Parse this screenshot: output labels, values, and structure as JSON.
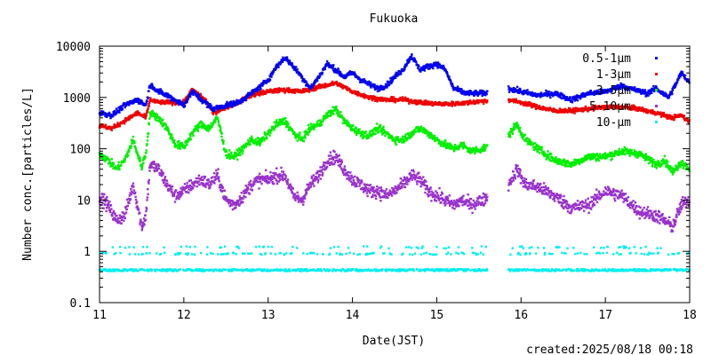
{
  "chart_data": {
    "type": "scatter",
    "title": "Fukuoka",
    "xlabel": "Date(JST)",
    "ylabel": "Number conc.[particles/L]",
    "footer": "created:2025/08/18 00:18",
    "x_axis": {
      "min": 11,
      "max": 18,
      "ticks": [
        "11",
        "12",
        "13",
        "14",
        "15",
        "16",
        "17",
        "18"
      ]
    },
    "y_axis": {
      "scale": "log",
      "min": 0.1,
      "max": 10000,
      "ticks": [
        {
          "v": 0.1,
          "label": "0.1"
        },
        {
          "v": 1,
          "label": "1"
        },
        {
          "v": 10,
          "label": "10"
        },
        {
          "v": 100,
          "label": "100"
        },
        {
          "v": 1000,
          "label": "1000"
        },
        {
          "v": 10000,
          "label": "10000"
        }
      ]
    },
    "grid": false,
    "legend_position": "top-right",
    "gaps": [
      [
        15.6,
        15.85
      ]
    ],
    "series": [
      {
        "name": "0.5-1μm",
        "color": "#0000ee",
        "jitter": 0.05,
        "points": [
          [
            11.0,
            500
          ],
          [
            11.15,
            450
          ],
          [
            11.3,
            700
          ],
          [
            11.45,
            900
          ],
          [
            11.55,
            700
          ],
          [
            11.6,
            1800
          ],
          [
            11.7,
            1300
          ],
          [
            11.85,
            1000
          ],
          [
            12.0,
            700
          ],
          [
            12.1,
            1300
          ],
          [
            12.25,
            800
          ],
          [
            12.35,
            600
          ],
          [
            12.5,
            700
          ],
          [
            12.65,
            800
          ],
          [
            12.8,
            1200
          ],
          [
            12.9,
            1600
          ],
          [
            13.0,
            2200
          ],
          [
            13.1,
            4000
          ],
          [
            13.2,
            6000
          ],
          [
            13.3,
            4000
          ],
          [
            13.4,
            2500
          ],
          [
            13.5,
            1500
          ],
          [
            13.6,
            2500
          ],
          [
            13.7,
            4500
          ],
          [
            13.8,
            3500
          ],
          [
            13.9,
            2500
          ],
          [
            14.0,
            3000
          ],
          [
            14.1,
            2200
          ],
          [
            14.2,
            1800
          ],
          [
            14.3,
            1500
          ],
          [
            14.4,
            1700
          ],
          [
            14.5,
            2500
          ],
          [
            14.6,
            3500
          ],
          [
            14.7,
            6500
          ],
          [
            14.8,
            3500
          ],
          [
            14.9,
            4000
          ],
          [
            15.0,
            4500
          ],
          [
            15.1,
            3500
          ],
          [
            15.2,
            1500
          ],
          [
            15.35,
            1200
          ],
          [
            15.55,
            1200
          ],
          [
            15.85,
            1500
          ],
          [
            16.0,
            1300
          ],
          [
            16.2,
            1100
          ],
          [
            16.4,
            1200
          ],
          [
            16.6,
            900
          ],
          [
            16.8,
            1200
          ],
          [
            17.0,
            1300
          ],
          [
            17.2,
            1700
          ],
          [
            17.35,
            1400
          ],
          [
            17.5,
            1200
          ],
          [
            17.6,
            1500
          ],
          [
            17.75,
            1000
          ],
          [
            17.85,
            2000
          ],
          [
            17.9,
            3000
          ],
          [
            18.0,
            2000
          ]
        ]
      },
      {
        "name": "1-3μm",
        "color": "#ee0000",
        "jitter": 0.04,
        "points": [
          [
            11.0,
            280
          ],
          [
            11.15,
            250
          ],
          [
            11.3,
            350
          ],
          [
            11.45,
            500
          ],
          [
            11.55,
            400
          ],
          [
            11.6,
            900
          ],
          [
            11.7,
            800
          ],
          [
            11.85,
            800
          ],
          [
            12.0,
            800
          ],
          [
            12.1,
            1400
          ],
          [
            12.25,
            900
          ],
          [
            12.35,
            500
          ],
          [
            12.5,
            650
          ],
          [
            12.65,
            800
          ],
          [
            12.8,
            1100
          ],
          [
            12.9,
            1200
          ],
          [
            13.0,
            1300
          ],
          [
            13.2,
            1400
          ],
          [
            13.4,
            1300
          ],
          [
            13.6,
            1600
          ],
          [
            13.8,
            1900
          ],
          [
            13.9,
            1600
          ],
          [
            14.0,
            1300
          ],
          [
            14.2,
            1000
          ],
          [
            14.4,
            900
          ],
          [
            14.6,
            900
          ],
          [
            14.8,
            800
          ],
          [
            15.0,
            750
          ],
          [
            15.2,
            750
          ],
          [
            15.4,
            800
          ],
          [
            15.55,
            850
          ],
          [
            15.85,
            900
          ],
          [
            16.0,
            800
          ],
          [
            16.2,
            650
          ],
          [
            16.4,
            550
          ],
          [
            16.6,
            550
          ],
          [
            16.8,
            600
          ],
          [
            17.0,
            650
          ],
          [
            17.2,
            650
          ],
          [
            17.4,
            600
          ],
          [
            17.6,
            500
          ],
          [
            17.8,
            400
          ],
          [
            17.9,
            450
          ],
          [
            18.0,
            330
          ]
        ]
      },
      {
        "name": "3-5μm",
        "color": "#00ee00",
        "jitter": 0.07,
        "points": [
          [
            11.0,
            80
          ],
          [
            11.1,
            60
          ],
          [
            11.2,
            40
          ],
          [
            11.3,
            60
          ],
          [
            11.4,
            150
          ],
          [
            11.45,
            80
          ],
          [
            11.5,
            45
          ],
          [
            11.55,
            80
          ],
          [
            11.6,
            500
          ],
          [
            11.7,
            400
          ],
          [
            11.8,
            250
          ],
          [
            11.9,
            120
          ],
          [
            12.0,
            110
          ],
          [
            12.1,
            200
          ],
          [
            12.2,
            300
          ],
          [
            12.3,
            250
          ],
          [
            12.4,
            400
          ],
          [
            12.5,
            80
          ],
          [
            12.6,
            70
          ],
          [
            12.7,
            100
          ],
          [
            12.8,
            150
          ],
          [
            12.9,
            130
          ],
          [
            13.0,
            200
          ],
          [
            13.1,
            300
          ],
          [
            13.2,
            350
          ],
          [
            13.3,
            200
          ],
          [
            13.4,
            150
          ],
          [
            13.5,
            250
          ],
          [
            13.6,
            300
          ],
          [
            13.7,
            450
          ],
          [
            13.8,
            600
          ],
          [
            13.9,
            350
          ],
          [
            14.0,
            250
          ],
          [
            14.1,
            200
          ],
          [
            14.2,
            180
          ],
          [
            14.3,
            250
          ],
          [
            14.4,
            200
          ],
          [
            14.5,
            150
          ],
          [
            14.6,
            150
          ],
          [
            14.7,
            200
          ],
          [
            14.8,
            250
          ],
          [
            14.9,
            200
          ],
          [
            15.0,
            150
          ],
          [
            15.1,
            120
          ],
          [
            15.2,
            100
          ],
          [
            15.3,
            120
          ],
          [
            15.4,
            90
          ],
          [
            15.55,
            100
          ],
          [
            15.85,
            180
          ],
          [
            15.95,
            300
          ],
          [
            16.05,
            150
          ],
          [
            16.2,
            100
          ],
          [
            16.4,
            60
          ],
          [
            16.6,
            50
          ],
          [
            16.8,
            70
          ],
          [
            17.0,
            70
          ],
          [
            17.2,
            90
          ],
          [
            17.4,
            80
          ],
          [
            17.6,
            50
          ],
          [
            17.7,
            60
          ],
          [
            17.8,
            35
          ],
          [
            17.9,
            55
          ],
          [
            18.0,
            40
          ]
        ]
      },
      {
        "name": "5-10μm",
        "color": "#9933cc",
        "jitter": 0.12,
        "points": [
          [
            11.0,
            12
          ],
          [
            11.1,
            8
          ],
          [
            11.2,
            4
          ],
          [
            11.3,
            5
          ],
          [
            11.4,
            20
          ],
          [
            11.45,
            8
          ],
          [
            11.5,
            3
          ],
          [
            11.55,
            5
          ],
          [
            11.6,
            50
          ],
          [
            11.7,
            40
          ],
          [
            11.8,
            20
          ],
          [
            11.9,
            12
          ],
          [
            12.0,
            15
          ],
          [
            12.1,
            20
          ],
          [
            12.2,
            25
          ],
          [
            12.3,
            20
          ],
          [
            12.4,
            30
          ],
          [
            12.5,
            10
          ],
          [
            12.6,
            8
          ],
          [
            12.7,
            12
          ],
          [
            12.8,
            20
          ],
          [
            12.9,
            25
          ],
          [
            13.0,
            25
          ],
          [
            13.1,
            30
          ],
          [
            13.2,
            30
          ],
          [
            13.3,
            12
          ],
          [
            13.4,
            10
          ],
          [
            13.5,
            20
          ],
          [
            13.6,
            30
          ],
          [
            13.7,
            60
          ],
          [
            13.8,
            70
          ],
          [
            13.9,
            40
          ],
          [
            14.0,
            25
          ],
          [
            14.1,
            20
          ],
          [
            14.2,
            15
          ],
          [
            14.3,
            15
          ],
          [
            14.4,
            12
          ],
          [
            14.5,
            15
          ],
          [
            14.6,
            20
          ],
          [
            14.7,
            30
          ],
          [
            14.8,
            25
          ],
          [
            14.9,
            15
          ],
          [
            15.0,
            12
          ],
          [
            15.1,
            10
          ],
          [
            15.2,
            8
          ],
          [
            15.3,
            10
          ],
          [
            15.4,
            8
          ],
          [
            15.55,
            10
          ],
          [
            15.85,
            20
          ],
          [
            15.95,
            40
          ],
          [
            16.05,
            20
          ],
          [
            16.2,
            18
          ],
          [
            16.4,
            12
          ],
          [
            16.6,
            7
          ],
          [
            16.8,
            8
          ],
          [
            17.0,
            15
          ],
          [
            17.2,
            12
          ],
          [
            17.4,
            6
          ],
          [
            17.6,
            5
          ],
          [
            17.7,
            4
          ],
          [
            17.8,
            3
          ],
          [
            17.9,
            8
          ],
          [
            18.0,
            10
          ]
        ]
      },
      {
        "name": "10-μm",
        "color": "#00eeee",
        "jitter": 0,
        "levels": [
          0.43,
          0.9,
          1.2
        ],
        "points": [
          [
            11.0,
            0.43
          ],
          [
            18.0,
            0.43
          ]
        ]
      }
    ]
  }
}
